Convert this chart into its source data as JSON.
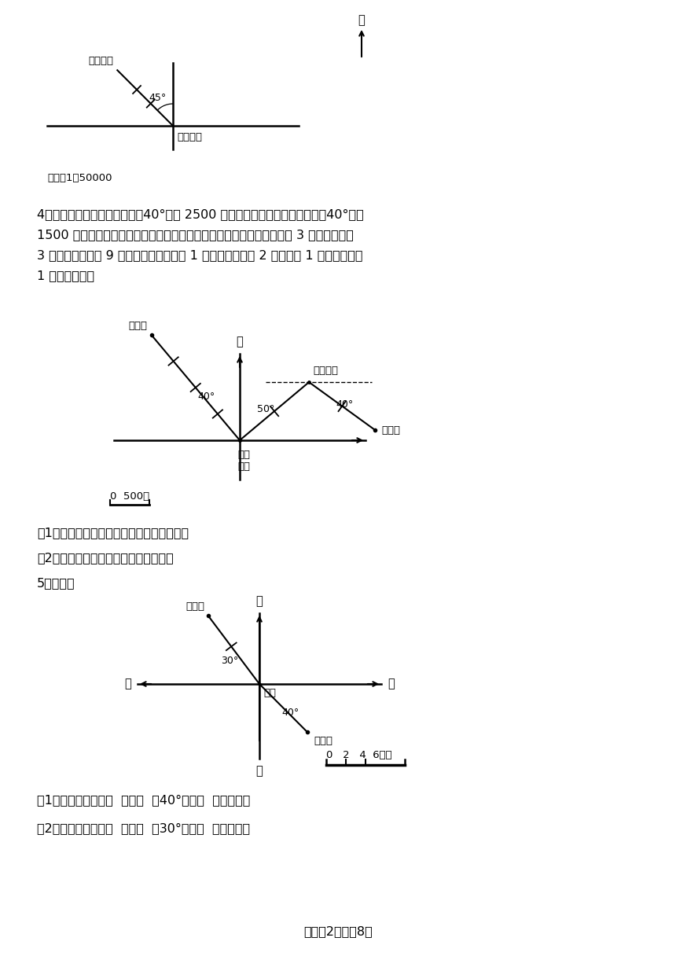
{
  "bg_color": "#ffffff",
  "page_width": 8.6,
  "page_height": 12.16,
  "text_q4_line1": "4．小明家在百货商场的北偏西40°方向 2500 米处，图书馆在农业银行东偏南40°方向",
  "text_q4_line2": "1500 米处，如图是小明坐出租车从家去图书馆的路线图，已知出租车在 3 千米以内（含",
  "text_q4_line3": "3 千米）按起步价 9 元计算，以后每增加 1 千米车费就增加 2 元（不足 1 千米的部分按",
  "text_q4_line4": "1 千米计算）。",
  "text_q4_sub1": "（1）描述小明乘车从家去图书馆的路线图。",
  "text_q4_sub2": "（2）小明乘坐出租车一共要花多少元？",
  "text_q5": "5．操作。",
  "text_q5_sub1": "（1）体育馆在学校（  ）偏（  ）40°方向（  ）千米处。",
  "text_q5_sub2": "（2）文化宫在学校（  ）偏（  ）30°方向（  ）千米处。",
  "footer": "试卷第2页，共8页"
}
